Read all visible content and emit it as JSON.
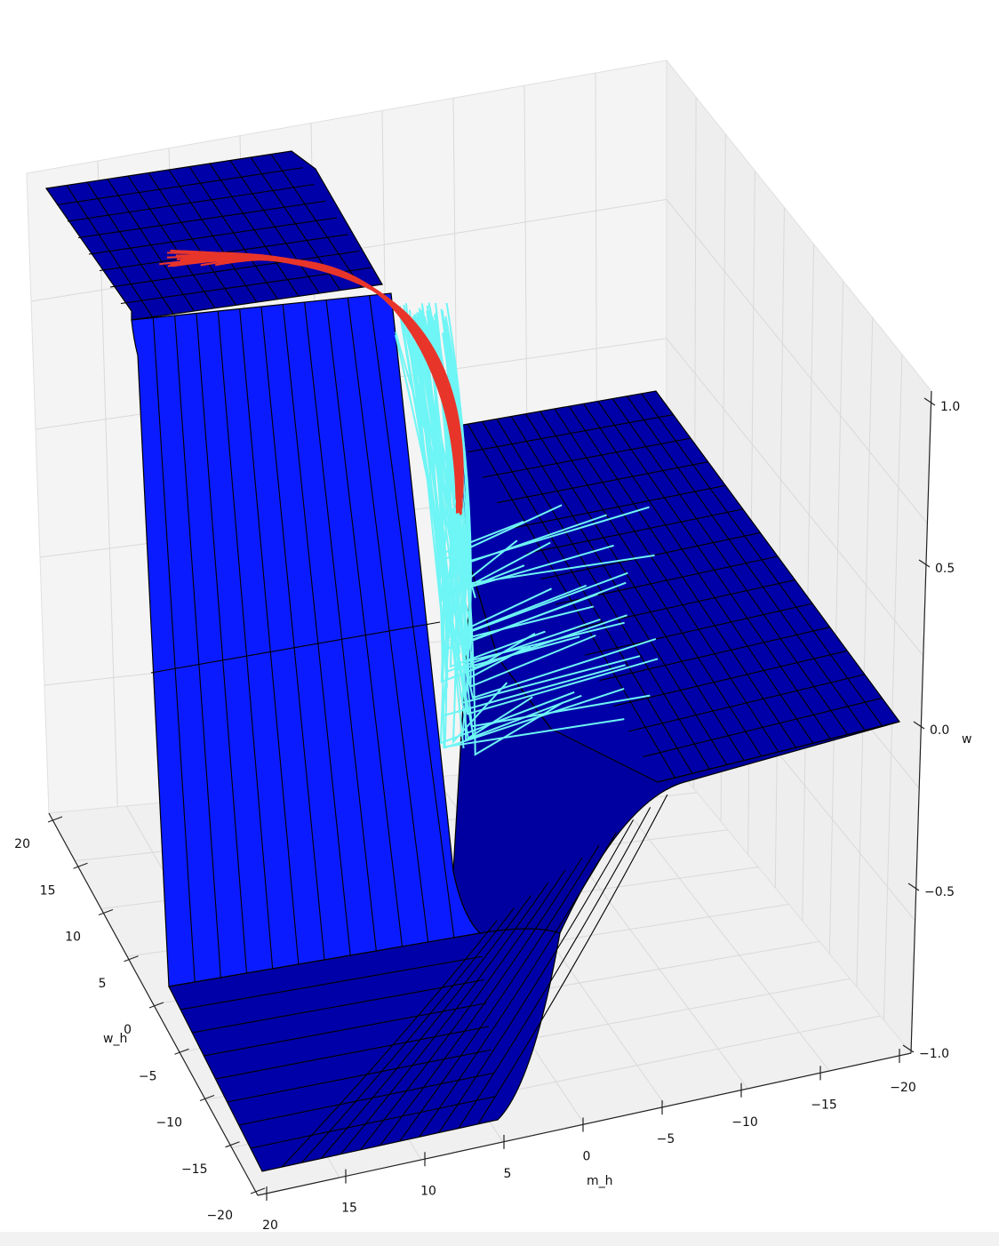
{
  "chart_data": {
    "type": "surface3d",
    "x_axis": {
      "label": "m_h",
      "ticks": [
        20,
        15,
        10,
        5,
        0,
        -5,
        -10,
        -15,
        -20
      ],
      "range": [
        -20,
        20
      ]
    },
    "y_axis": {
      "label": "w_h",
      "ticks": [
        20,
        15,
        10,
        5,
        0,
        -5,
        -10,
        -15,
        -20
      ],
      "range": [
        -20,
        20
      ]
    },
    "z_axis": {
      "label": "w",
      "ticks": [
        1.0,
        0.5,
        0.0,
        -0.5,
        -1.0
      ],
      "tick_labels": [
        "1.0",
        "0.5",
        "0.0",
        "−0.5",
        "−1.0"
      ],
      "range": [
        -1,
        1
      ]
    },
    "surface": {
      "function": "w = tanh(w_h) at upper grid, descending through a step along w_h≈0",
      "color_top": "#0000a8",
      "color_face": "#0a1cff",
      "edge_color": "#000000"
    },
    "series": [
      {
        "kind": "trajectory_bundle",
        "color": "#e8352a"
      },
      {
        "kind": "trajectory_bundle",
        "color": "#6ef5f5"
      }
    ],
    "grid": true
  },
  "colors": {
    "pane": "#f4f4f4",
    "grid": "#d9d9d9",
    "surface_dark": "#0000a8",
    "surface_face": "#0a1cff",
    "red": "#e8352a",
    "cyan": "#6ef5f5"
  }
}
